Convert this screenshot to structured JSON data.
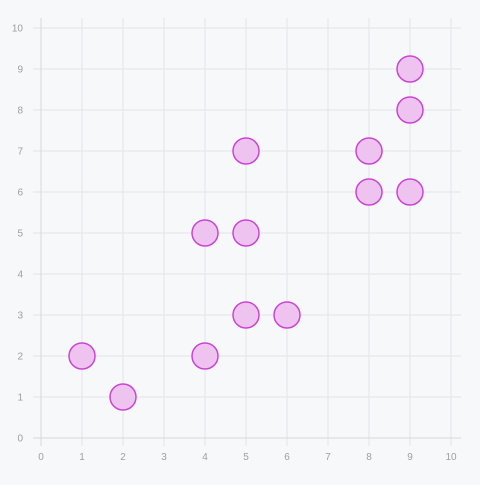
{
  "chart_data": {
    "type": "scatter",
    "title": "",
    "xlabel": "",
    "ylabel": "",
    "xlim": [
      0,
      10
    ],
    "ylim": [
      0,
      10
    ],
    "xticks": [
      0,
      1,
      2,
      3,
      4,
      5,
      6,
      7,
      8,
      9,
      10
    ],
    "yticks": [
      0,
      1,
      2,
      3,
      4,
      5,
      6,
      7,
      8,
      9,
      10
    ],
    "grid": true,
    "legend": "none",
    "series": [
      {
        "points": [
          {
            "x": 1,
            "y": 2
          },
          {
            "x": 2,
            "y": 1
          },
          {
            "x": 4,
            "y": 2
          },
          {
            "x": 4,
            "y": 5
          },
          {
            "x": 5,
            "y": 3
          },
          {
            "x": 5,
            "y": 5
          },
          {
            "x": 5,
            "y": 7
          },
          {
            "x": 6,
            "y": 3
          },
          {
            "x": 8,
            "y": 6
          },
          {
            "x": 8,
            "y": 7
          },
          {
            "x": 9,
            "y": 6
          },
          {
            "x": 9,
            "y": 8
          },
          {
            "x": 9,
            "y": 9
          }
        ]
      }
    ],
    "colors": {
      "background": "#f7f8fa",
      "grid": "#e3e5e8",
      "axis": "#d5d8dc",
      "tick_label": "#9aa0a6",
      "point_fill": "#efc3ef",
      "point_stroke": "#cc44d6"
    }
  }
}
